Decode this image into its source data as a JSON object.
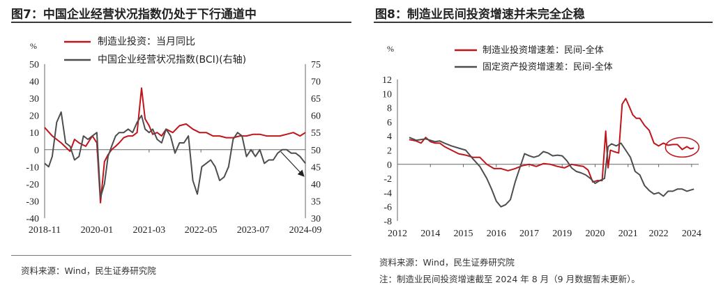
{
  "colors": {
    "red": "#c0141b",
    "gray": "#4d4d4d",
    "axis": "#666666"
  },
  "panels": [
    {
      "title": "图7：中国企业经营状况指数仍处于下行通道中",
      "source": "资料来源：Wind，民生证券研究院",
      "note": ""
    },
    {
      "title": "图8：制造业民间投资增速并未完全企稳",
      "source": "资料来源：Wind，民生证券研究院",
      "note": "注：制造业民间投资增速截至 2024 年 8 月（9 月数据暂未更新）。"
    }
  ],
  "chart_data": [
    {
      "type": "line",
      "ylabel": "%",
      "ylim": [
        -40,
        50
      ],
      "yticks": [
        "50",
        "40",
        "30",
        "20",
        "10",
        "0",
        "-10",
        "-20",
        "-30",
        "-40"
      ],
      "y2lim": [
        30,
        75
      ],
      "y2ticks": [
        "75",
        "70",
        "65",
        "60",
        "55",
        "50",
        "45",
        "40",
        "35",
        "30"
      ],
      "xticks": [
        "2018-11",
        "2020-01",
        "2021-03",
        "2022-05",
        "2023-07",
        "2024-09"
      ],
      "annotation": "downward-arrow",
      "series": [
        {
          "name": "制造业投资：当月同比",
          "color": "red",
          "axis": "left",
          "x": [
            2018.83,
            2019.0,
            2019.2,
            2019.4,
            2019.5,
            2019.6,
            2019.75,
            2019.9,
            2020.0,
            2020.08,
            2020.17,
            2020.25,
            2020.33,
            2020.42,
            2020.5,
            2020.6,
            2020.7,
            2020.8,
            2020.9,
            2021.0,
            2021.08,
            2021.17,
            2021.25,
            2021.35,
            2021.45,
            2021.55,
            2021.7,
            2021.85,
            2022.0,
            2022.15,
            2022.3,
            2022.45,
            2022.6,
            2022.75,
            2022.9,
            2023.05,
            2023.2,
            2023.35,
            2023.5,
            2023.65,
            2023.8,
            2023.95,
            2024.1,
            2024.25,
            2024.4,
            2024.55,
            2024.67
          ],
          "values": [
            13,
            8,
            4,
            -1,
            6,
            4,
            2,
            8,
            4,
            -31,
            -7,
            -3,
            0,
            2,
            4,
            7,
            8,
            8,
            10,
            36,
            18,
            14,
            9,
            10,
            8,
            12,
            10,
            14,
            15,
            12,
            10,
            10,
            8,
            8,
            7,
            7,
            8,
            8,
            9,
            9,
            8,
            8,
            8,
            9,
            10,
            8,
            10
          ]
        },
        {
          "name": "中国企业经营状况指数(BCI)(右轴)",
          "color": "gray",
          "axis": "right",
          "x": [
            2018.83,
            2018.92,
            2019.0,
            2019.1,
            2019.2,
            2019.3,
            2019.4,
            2019.5,
            2019.6,
            2019.7,
            2019.8,
            2019.9,
            2020.0,
            2020.08,
            2020.17,
            2020.25,
            2020.33,
            2020.42,
            2020.5,
            2020.6,
            2020.7,
            2020.8,
            2020.9,
            2021.0,
            2021.08,
            2021.17,
            2021.25,
            2021.35,
            2021.45,
            2021.55,
            2021.65,
            2021.75,
            2021.85,
            2021.95,
            2022.05,
            2022.15,
            2022.25,
            2022.35,
            2022.45,
            2022.55,
            2022.65,
            2022.75,
            2022.85,
            2022.95,
            2023.05,
            2023.15,
            2023.25,
            2023.35,
            2023.45,
            2023.55,
            2023.65,
            2023.75,
            2023.85,
            2023.95,
            2024.05,
            2024.15,
            2024.25,
            2024.35,
            2024.45,
            2024.55,
            2024.67
          ],
          "values": [
            46,
            45,
            48,
            58,
            61,
            52,
            51,
            47,
            48,
            54,
            53,
            54,
            55,
            36,
            40,
            48,
            51,
            54,
            55,
            55,
            56,
            55,
            58,
            60,
            56,
            55,
            56,
            53,
            52,
            56,
            54,
            49,
            52,
            52,
            54,
            41,
            37,
            45,
            46,
            47,
            45,
            41,
            42,
            45,
            53,
            55,
            54,
            48,
            50,
            48,
            50,
            46,
            47,
            47,
            49,
            50,
            50,
            49,
            49,
            48,
            46
          ]
        }
      ]
    },
    {
      "type": "line",
      "ylabel": "%",
      "ylim": [
        -8,
        12
      ],
      "yticks": [
        "12",
        "10",
        "8",
        "6",
        "4",
        "2",
        "0",
        "-2",
        "-4",
        "-6",
        "-8"
      ],
      "xticks": [
        "2012",
        "2014",
        "2015",
        "2016",
        "2017",
        "2019",
        "2020",
        "2021",
        "2022",
        "2024"
      ],
      "annotation": "circle",
      "series": [
        {
          "name": "制造业投资增速差：民间-全体",
          "color": "red",
          "x": [
            2012.5,
            2012.8,
            2013.0,
            2013.2,
            2013.4,
            2013.6,
            2013.8,
            2014.0,
            2014.3,
            2014.6,
            2014.9,
            2015.2,
            2015.5,
            2015.8,
            2016.1,
            2016.4,
            2016.7,
            2017.0,
            2017.3,
            2017.6,
            2017.9,
            2018.2,
            2018.5,
            2018.8,
            2019.1,
            2019.4,
            2019.7,
            2019.9,
            2020.1,
            2020.3,
            2020.5,
            2020.7,
            2020.85,
            2020.95,
            2021.05,
            2021.2,
            2021.4,
            2021.55,
            2021.7,
            2021.85,
            2022.0,
            2022.15,
            2022.3,
            2022.5,
            2022.7,
            2022.9,
            2023.1,
            2023.3,
            2023.5,
            2023.7,
            2023.9,
            2024.1,
            2024.3,
            2024.45,
            2024.6
          ],
          "values": [
            3.5,
            3.3,
            3.0,
            3.8,
            3.2,
            3.0,
            3.0,
            2.5,
            2.0,
            1.5,
            1.3,
            1.0,
            1.0,
            0.0,
            -0.6,
            -0.6,
            -0.9,
            -0.6,
            -0.2,
            0.0,
            -0.3,
            0.1,
            0.0,
            -0.3,
            -0.5,
            0.0,
            -0.2,
            -0.3,
            -0.8,
            -2.5,
            -2.3,
            -2.3,
            4.7,
            -0.5,
            2.0,
            1.8,
            1.6,
            8.5,
            9.3,
            8.2,
            7.0,
            6.5,
            6.5,
            5.5,
            4.8,
            3.0,
            2.6,
            3.0,
            2.7,
            2.8,
            2.8,
            2.1,
            2.5,
            2.2,
            2.3
          ]
        },
        {
          "name": "固定资产投资增速差：民间-全体",
          "color": "gray",
          "x": [
            2012.5,
            2012.8,
            2013.0,
            2013.2,
            2013.4,
            2013.6,
            2013.8,
            2014.0,
            2014.3,
            2014.6,
            2014.9,
            2015.2,
            2015.5,
            2015.8,
            2016.0,
            2016.2,
            2016.4,
            2016.6,
            2016.8,
            2017.0,
            2017.2,
            2017.4,
            2017.6,
            2017.8,
            2018.0,
            2018.2,
            2018.4,
            2018.6,
            2018.8,
            2019.0,
            2019.2,
            2019.4,
            2019.6,
            2019.8,
            2020.0,
            2020.2,
            2020.4,
            2020.6,
            2020.8,
            2020.95,
            2021.1,
            2021.3,
            2021.5,
            2021.7,
            2021.9,
            2022.1,
            2022.3,
            2022.5,
            2022.7,
            2022.9,
            2023.1,
            2023.3,
            2023.5,
            2023.7,
            2023.9,
            2024.1,
            2024.3,
            2024.5,
            2024.6
          ],
          "values": [
            3.8,
            3.4,
            3.5,
            3.6,
            3.4,
            3.2,
            3.3,
            3.0,
            2.6,
            2.3,
            2.0,
            0.8,
            -0.3,
            -2.0,
            -3.5,
            -5.2,
            -6.0,
            -5.7,
            -5.0,
            -2.5,
            -0.5,
            1.5,
            1.2,
            1.0,
            1.2,
            1.8,
            1.6,
            1.2,
            1.3,
            1.2,
            0.5,
            -0.5,
            -1.0,
            -1.2,
            -1.5,
            -2.0,
            -2.7,
            -2.3,
            -2.0,
            2.5,
            2.9,
            2.6,
            3.0,
            2.0,
            1.0,
            -1.0,
            -1.5,
            -3.0,
            -3.7,
            -4.2,
            -4.0,
            -4.5,
            -3.8,
            -3.8,
            -3.5,
            -3.5,
            -3.8,
            -3.6,
            -3.5
          ]
        }
      ]
    }
  ]
}
